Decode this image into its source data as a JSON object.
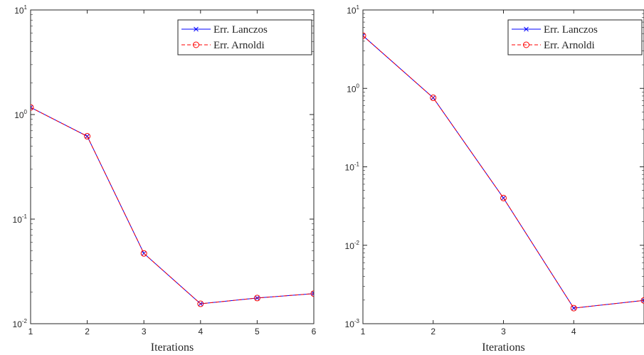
{
  "chart_data": [
    {
      "type": "line",
      "xlabel": "Iterations",
      "ylabel": "",
      "yscale": "log",
      "xlim": [
        1,
        6
      ],
      "ylim": [
        0.01,
        10
      ],
      "xticks": [
        "1",
        "2",
        "3",
        "4",
        "5",
        "6"
      ],
      "yticks": [
        {
          "base": "10",
          "exp": "-2"
        },
        {
          "base": "10",
          "exp": "-1"
        },
        {
          "base": "10",
          "exp": "0"
        },
        {
          "base": "10",
          "exp": "1"
        }
      ],
      "legend": "top-right",
      "x": [
        1,
        2,
        3,
        4,
        5,
        6
      ],
      "series": [
        {
          "name": "Err. Lanczos",
          "color": "#0000ff",
          "marker": "x",
          "linestyle": "solid",
          "values": [
            1.17,
            0.62,
            0.047,
            0.0155,
            0.0176,
            0.0194
          ]
        },
        {
          "name": "Err. Arnoldi",
          "color": "#ff0000",
          "marker": "o",
          "linestyle": "dashed",
          "values": [
            1.17,
            0.62,
            0.047,
            0.0155,
            0.0176,
            0.0194
          ]
        }
      ]
    },
    {
      "type": "line",
      "xlabel": "Iterations",
      "ylabel": "",
      "yscale": "log",
      "xlim": [
        1,
        5
      ],
      "ylim": [
        0.001,
        10
      ],
      "xticks": [
        "1",
        "2",
        "3",
        "4"
      ],
      "yticks": [
        {
          "base": "10",
          "exp": "-3"
        },
        {
          "base": "10",
          "exp": "-2"
        },
        {
          "base": "10",
          "exp": "-1"
        },
        {
          "base": "10",
          "exp": "0"
        },
        {
          "base": "10",
          "exp": "1"
        }
      ],
      "legend": "top-right",
      "x": [
        1,
        2,
        3,
        4,
        5
      ],
      "series": [
        {
          "name": "Err. Lanczos",
          "color": "#0000ff",
          "marker": "x",
          "linestyle": "solid",
          "values": [
            4.7,
            0.76,
            0.04,
            0.00158,
            0.00198
          ]
        },
        {
          "name": "Err. Arnoldi",
          "color": "#ff0000",
          "marker": "o",
          "linestyle": "dashed",
          "values": [
            4.7,
            0.76,
            0.04,
            0.00158,
            0.00198
          ]
        }
      ]
    }
  ]
}
